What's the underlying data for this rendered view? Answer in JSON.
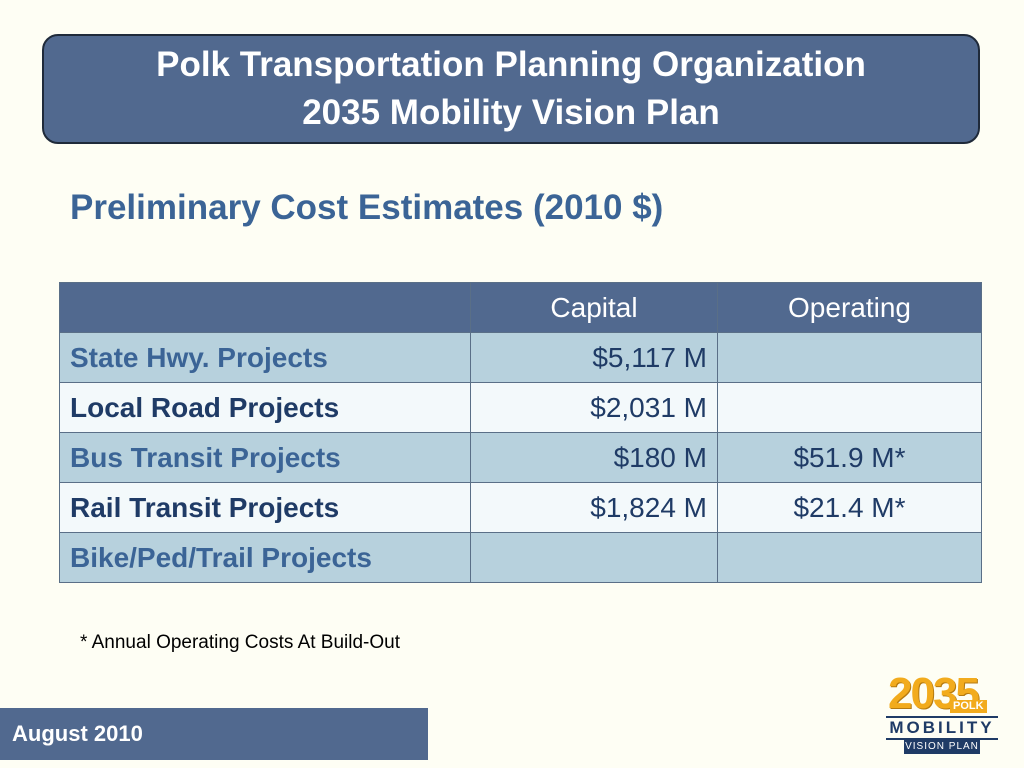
{
  "header": {
    "title_line1": "Polk Transportation Planning Organization",
    "title_line2": "2035 Mobility Vision Plan"
  },
  "subtitle": "Preliminary Cost Estimates (2010 $)",
  "table": {
    "columns": [
      "",
      "Capital",
      "Operating"
    ],
    "rows": [
      {
        "project": "State Hwy. Projects",
        "capital": "$5,117 M",
        "operating": ""
      },
      {
        "project": "Local Road Projects",
        "capital": "$2,031 M",
        "operating": ""
      },
      {
        "project": "Bus Transit Projects",
        "capital": "$180 M",
        "operating": "$51.9 M*"
      },
      {
        "project": "Rail Transit Projects",
        "capital": "$1,824 M",
        "operating": "$21.4 M*"
      },
      {
        "project": "Bike/Ped/Trail Projects",
        "capital": "",
        "operating": ""
      }
    ]
  },
  "footnote": "* Annual Operating Costs At Build-Out",
  "footer": {
    "date": "August 2010"
  },
  "logo": {
    "year": "2035",
    "county": "POLK",
    "word": "MOBILITY",
    "tagline": "VISION PLAN"
  },
  "colors": {
    "accent": "#51698f",
    "heading_text": "#3b6496",
    "row_alt": "#b7d1dd",
    "logo_gold": "#f2ab1d"
  }
}
